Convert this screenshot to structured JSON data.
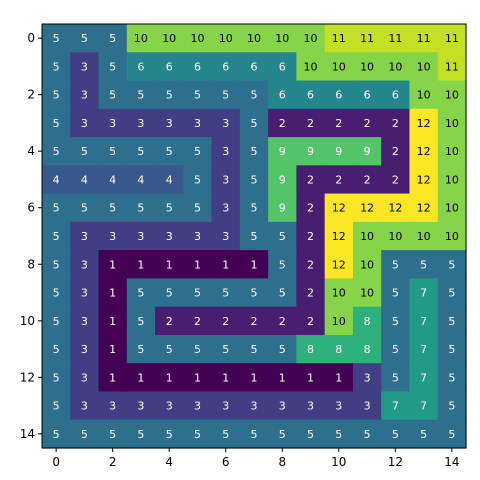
{
  "chart_data": {
    "type": "heatmap",
    "title": "",
    "xlabel": "",
    "ylabel": "",
    "x_ticks": [
      "0",
      "2",
      "4",
      "6",
      "8",
      "10",
      "12",
      "14"
    ],
    "y_ticks": [
      "0",
      "2",
      "4",
      "6",
      "8",
      "10",
      "12",
      "14"
    ],
    "x_tick_values": [
      0,
      2,
      4,
      6,
      8,
      10,
      12,
      14
    ],
    "y_tick_values": [
      0,
      2,
      4,
      6,
      8,
      10,
      12,
      14
    ],
    "xlim": [
      -0.5,
      14.5
    ],
    "ylim": [
      14.5,
      -0.5
    ],
    "colormap": "viridis",
    "value_range": [
      1,
      12
    ],
    "grid": false,
    "legend": "none",
    "matrix": [
      [
        5,
        5,
        5,
        10,
        10,
        10,
        10,
        10,
        10,
        10,
        11,
        11,
        11,
        11,
        11
      ],
      [
        5,
        3,
        5,
        6,
        6,
        6,
        6,
        6,
        6,
        10,
        10,
        10,
        10,
        10,
        11
      ],
      [
        5,
        3,
        5,
        5,
        5,
        5,
        5,
        5,
        6,
        6,
        6,
        6,
        6,
        10,
        10
      ],
      [
        5,
        3,
        3,
        3,
        3,
        3,
        3,
        5,
        2,
        2,
        2,
        2,
        2,
        12,
        10
      ],
      [
        5,
        5,
        5,
        5,
        5,
        5,
        3,
        5,
        9,
        9,
        9,
        9,
        2,
        12,
        10
      ],
      [
        4,
        4,
        4,
        4,
        4,
        5,
        3,
        5,
        9,
        2,
        2,
        2,
        2,
        12,
        10
      ],
      [
        5,
        5,
        5,
        5,
        5,
        5,
        3,
        5,
        9,
        2,
        12,
        12,
        12,
        12,
        10
      ],
      [
        5,
        3,
        3,
        3,
        3,
        3,
        3,
        5,
        5,
        2,
        12,
        10,
        10,
        10,
        10
      ],
      [
        5,
        3,
        1,
        1,
        1,
        1,
        1,
        1,
        5,
        2,
        12,
        10,
        5,
        5,
        5
      ],
      [
        5,
        3,
        1,
        5,
        5,
        5,
        5,
        5,
        5,
        2,
        10,
        10,
        5,
        7,
        5
      ],
      [
        5,
        3,
        1,
        5,
        2,
        2,
        2,
        2,
        2,
        2,
        10,
        8,
        5,
        7,
        5
      ],
      [
        5,
        3,
        1,
        5,
        5,
        5,
        5,
        5,
        5,
        8,
        8,
        8,
        5,
        7,
        5
      ],
      [
        5,
        3,
        1,
        1,
        1,
        1,
        1,
        1,
        1,
        1,
        1,
        3,
        5,
        7,
        5
      ],
      [
        5,
        3,
        3,
        3,
        3,
        3,
        3,
        3,
        3,
        3,
        3,
        3,
        7,
        7,
        5
      ],
      [
        5,
        5,
        5,
        5,
        5,
        5,
        5,
        5,
        5,
        5,
        5,
        5,
        5,
        5,
        5
      ]
    ]
  }
}
